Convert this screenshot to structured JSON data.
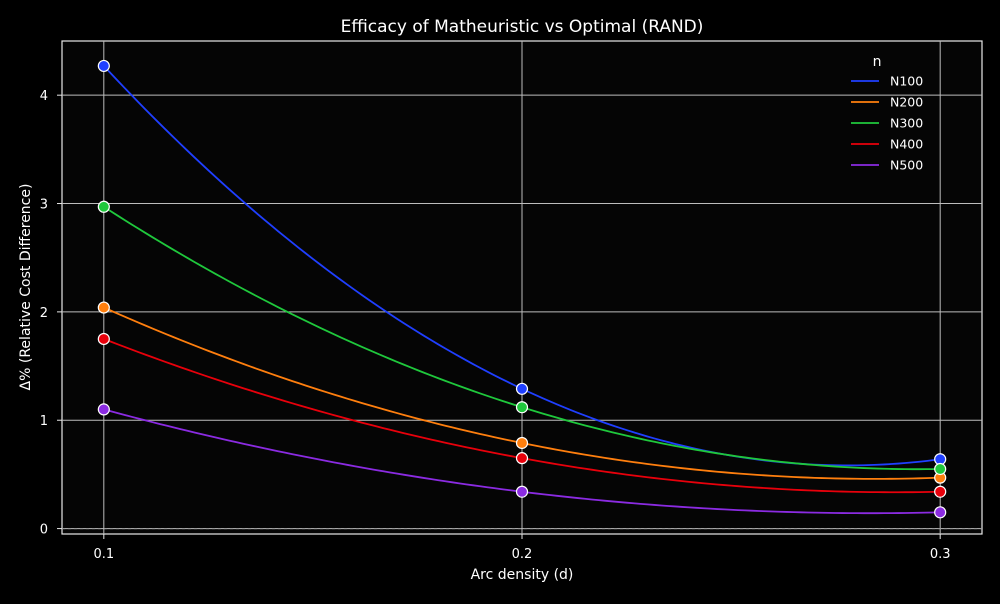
{
  "chart_data": {
    "type": "line",
    "title": "Efficacy of Matheuristic vs Optimal (RAND)",
    "xlabel": "Arc density (d)",
    "ylabel": "Δ% (Relative Cost Difference)",
    "x": [
      0.1,
      0.2,
      0.3
    ],
    "x_ticks": [
      "0.1",
      "0.2",
      "0.3"
    ],
    "y_ticks": [
      "0",
      "1",
      "2",
      "3",
      "4"
    ],
    "xlim": [
      0.09,
      0.31
    ],
    "ylim": [
      -0.05,
      4.5
    ],
    "grid": true,
    "reference_line": 0,
    "legend": {
      "title": "n",
      "placement": "top-right"
    },
    "series": [
      {
        "name": "N100",
        "color": "#1f3fff",
        "values": [
          4.27,
          1.29,
          0.64
        ]
      },
      {
        "name": "N200",
        "color": "#ff7f0e",
        "values": [
          2.04,
          0.79,
          0.47
        ]
      },
      {
        "name": "N300",
        "color": "#1fc83c",
        "values": [
          2.97,
          1.12,
          0.55
        ]
      },
      {
        "name": "N400",
        "color": "#e8000b",
        "values": [
          1.75,
          0.65,
          0.34
        ]
      },
      {
        "name": "N500",
        "color": "#8b2be2",
        "values": [
          1.1,
          0.34,
          0.15
        ]
      }
    ]
  }
}
